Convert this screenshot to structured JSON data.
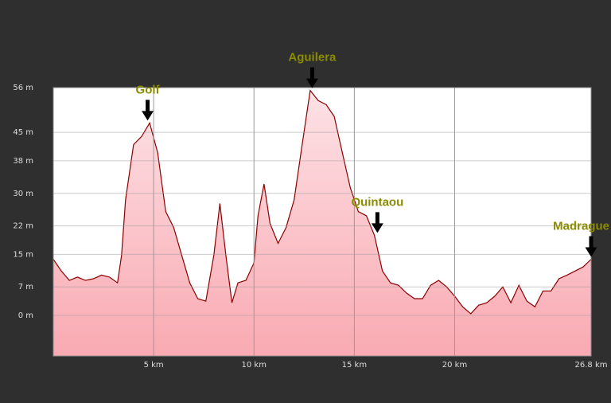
{
  "chart_data": {
    "type": "area",
    "x": [
      0,
      0.4,
      0.8,
      1.2,
      1.6,
      2.0,
      2.4,
      2.8,
      3.2,
      3.4,
      3.6,
      3.8,
      4.0,
      4.4,
      4.8,
      5.2,
      5.6,
      6.0,
      6.4,
      6.8,
      7.2,
      7.6,
      8.0,
      8.3,
      8.6,
      8.9,
      9.2,
      9.6,
      10.0,
      10.2,
      10.5,
      10.8,
      11.2,
      11.6,
      12.0,
      12.4,
      12.8,
      13.2,
      13.6,
      14.0,
      14.4,
      14.8,
      15.2,
      15.6,
      16.0,
      16.4,
      16.8,
      17.2,
      17.6,
      18.0,
      18.4,
      18.8,
      19.2,
      19.6,
      20.0,
      20.4,
      20.8,
      21.2,
      21.6,
      22.0,
      22.4,
      22.8,
      23.2,
      23.6,
      24.0,
      24.4,
      24.8,
      25.2,
      25.6,
      26.0,
      26.4,
      26.8
    ],
    "values": [
      13.8,
      10.9,
      8.6,
      9.4,
      8.6,
      9.0,
      9.9,
      9.4,
      8.0,
      14.8,
      28.4,
      35.3,
      42.0,
      44.0,
      47.3,
      40.0,
      25.5,
      21.6,
      14.8,
      8.0,
      4.1,
      3.5,
      14.8,
      27.5,
      14.8,
      3.1,
      8.0,
      8.6,
      12.9,
      24.5,
      32.3,
      22.6,
      17.7,
      21.6,
      28.4,
      42.0,
      55.3,
      52.8,
      51.8,
      48.9,
      40.1,
      31.4,
      25.5,
      24.5,
      19.7,
      10.9,
      8.0,
      7.4,
      5.5,
      4.1,
      4.1,
      7.4,
      8.6,
      7.0,
      4.7,
      2.1,
      0.4,
      2.5,
      3.1,
      4.7,
      7.0,
      3.1,
      7.4,
      3.5,
      2.1,
      6.0,
      6.0,
      9.0,
      9.9,
      10.9,
      11.9,
      13.8
    ],
    "color": "#8b0000",
    "xlim": [
      0,
      26.8
    ],
    "ylim": [
      -10,
      56
    ],
    "xticks": [
      {
        "value": 5,
        "label": "5 km"
      },
      {
        "value": 10,
        "label": "10 km"
      },
      {
        "value": 15,
        "label": "15 km"
      },
      {
        "value": 20,
        "label": "20 km"
      },
      {
        "value": 26.8,
        "label": "26.8 km"
      }
    ],
    "yticks": [
      {
        "value": 0,
        "label": "0 m"
      },
      {
        "value": 7,
        "label": "7 m"
      },
      {
        "value": 15,
        "label": "15 m"
      },
      {
        "value": 22,
        "label": "22 m"
      },
      {
        "value": 30,
        "label": "30 m"
      },
      {
        "value": 38,
        "label": "38 m"
      },
      {
        "value": 45,
        "label": "45 m"
      },
      {
        "value": 56,
        "label": "56 m"
      }
    ],
    "grid": true,
    "annotations": [
      {
        "text": "Golf",
        "x": 4.7,
        "y": 47.3
      },
      {
        "text": "Aguilera",
        "x": 12.9,
        "y": 55.3
      },
      {
        "text": "Quintaou",
        "x": 16.15,
        "y": 19.7
      },
      {
        "text": "Madrague",
        "x": 26.8,
        "y": 13.8
      }
    ]
  }
}
